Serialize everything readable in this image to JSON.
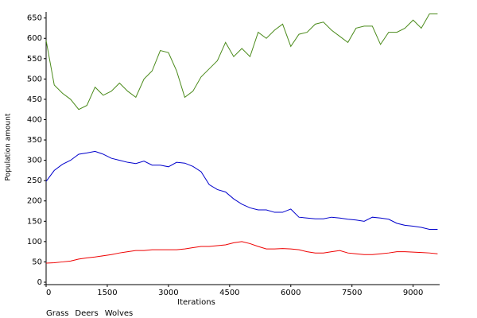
{
  "chart_data": {
    "type": "line",
    "xlabel": "Iterations",
    "ylabel": "Population amount",
    "x": [
      0,
      200,
      400,
      600,
      800,
      1000,
      1200,
      1400,
      1600,
      1800,
      2000,
      2200,
      2400,
      2600,
      2800,
      3000,
      3200,
      3400,
      3600,
      3800,
      4000,
      4200,
      4400,
      4600,
      4800,
      5000,
      5200,
      5400,
      5600,
      5800,
      6000,
      6200,
      6400,
      6600,
      6800,
      7000,
      7200,
      7400,
      7600,
      7800,
      8000,
      8200,
      8400,
      8600,
      8800,
      9000,
      9200,
      9400,
      9600
    ],
    "series": [
      {
        "name": "Grass",
        "color": "#4a8a1a",
        "values": [
          595,
          485,
          465,
          450,
          425,
          435,
          480,
          460,
          470,
          490,
          470,
          455,
          500,
          520,
          570,
          565,
          520,
          455,
          470,
          505,
          525,
          545,
          590,
          555,
          575,
          555,
          615,
          600,
          620,
          635,
          580,
          610,
          615,
          635,
          640,
          620,
          605,
          590,
          625,
          630,
          630,
          585,
          615,
          615,
          625,
          645,
          625,
          660,
          660
        ]
      },
      {
        "name": "Deers",
        "color": "#0000cc",
        "values": [
          248,
          275,
          290,
          300,
          315,
          318,
          322,
          315,
          305,
          300,
          295,
          292,
          298,
          288,
          288,
          284,
          295,
          293,
          285,
          272,
          240,
          228,
          222,
          205,
          192,
          183,
          178,
          178,
          172,
          172,
          180,
          160,
          158,
          156,
          156,
          160,
          158,
          155,
          153,
          150,
          160,
          158,
          155,
          145,
          140,
          138,
          135,
          130,
          130
        ]
      },
      {
        "name": "Wolves",
        "color": "#ee0000",
        "values": [
          47,
          48,
          50,
          52,
          57,
          60,
          62,
          65,
          68,
          72,
          75,
          78,
          78,
          80,
          80,
          80,
          80,
          82,
          85,
          88,
          88,
          90,
          92,
          97,
          100,
          95,
          88,
          82,
          82,
          83,
          82,
          80,
          75,
          72,
          72,
          75,
          78,
          72,
          70,
          68,
          68,
          70,
          72,
          75,
          75,
          74,
          73,
          72,
          70
        ]
      }
    ],
    "xlim": [
      0,
      9650
    ],
    "ylim": [
      0,
      665
    ],
    "xticks": [
      0,
      1500,
      3000,
      4500,
      6000,
      7500,
      9000
    ],
    "yticks": [
      0,
      50,
      100,
      150,
      200,
      250,
      300,
      350,
      400,
      450,
      500,
      550,
      600,
      650
    ],
    "grid": false,
    "legend": "bottom-left"
  }
}
